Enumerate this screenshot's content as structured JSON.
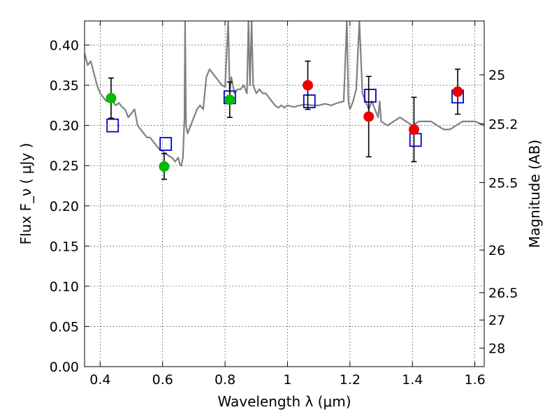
{
  "chart_data": {
    "type": "scatter",
    "title": "",
    "xlabel": "Wavelength  λ (μm)",
    "ylabel": "Flux  F_ν  ( μJy )",
    "ylabel_right": "Magnitude (AB)",
    "xlim": [
      0.35,
      1.63
    ],
    "ylim": [
      0.0,
      0.43
    ],
    "grid": true,
    "x_ticks": [
      0.4,
      0.6,
      0.8,
      1.0,
      1.2,
      1.4,
      1.6
    ],
    "x_tick_labels": [
      "0.4",
      "0.6",
      "0.8",
      "1",
      "1.2",
      "1.4",
      "1.6"
    ],
    "y_ticks": [
      0.0,
      0.05,
      0.1,
      0.15,
      0.2,
      0.25,
      0.3,
      0.35,
      0.4
    ],
    "y_tick_labels": [
      "0.00",
      "0.05",
      "0.10",
      "0.15",
      "0.20",
      "0.25",
      "0.30",
      "0.35",
      "0.40"
    ],
    "right_axis_ticks": [
      {
        "flux": 0.363,
        "label": "25"
      },
      {
        "flux": 0.302,
        "label": "25.2"
      },
      {
        "flux": 0.229,
        "label": "25.5"
      },
      {
        "flux": 0.145,
        "label": "26"
      },
      {
        "flux": 0.092,
        "label": "26.5"
      },
      {
        "flux": 0.058,
        "label": "27"
      },
      {
        "flux": 0.023,
        "label": "28"
      }
    ],
    "series": [
      {
        "kind": "model-spectrum",
        "color": "#808080",
        "x": [
          0.35,
          0.36,
          0.37,
          0.38,
          0.39,
          0.4,
          0.41,
          0.42,
          0.43,
          0.44,
          0.45,
          0.46,
          0.47,
          0.48,
          0.49,
          0.5,
          0.51,
          0.52,
          0.53,
          0.54,
          0.55,
          0.56,
          0.57,
          0.58,
          0.59,
          0.6,
          0.61,
          0.62,
          0.63,
          0.64,
          0.65,
          0.655,
          0.66,
          0.665,
          0.67,
          0.672,
          0.675,
          0.68,
          0.69,
          0.7,
          0.71,
          0.72,
          0.73,
          0.74,
          0.75,
          0.76,
          0.77,
          0.78,
          0.79,
          0.8,
          0.81,
          0.815,
          0.82,
          0.83,
          0.84,
          0.85,
          0.86,
          0.87,
          0.875,
          0.88,
          0.885,
          0.89,
          0.9,
          0.91,
          0.92,
          0.93,
          0.94,
          0.95,
          0.96,
          0.97,
          0.98,
          0.99,
          1.0,
          1.02,
          1.04,
          1.06,
          1.08,
          1.1,
          1.12,
          1.14,
          1.16,
          1.18,
          1.19,
          1.195,
          1.2,
          1.21,
          1.22,
          1.23,
          1.24,
          1.25,
          1.26,
          1.27,
          1.28,
          1.29,
          1.295,
          1.3,
          1.32,
          1.34,
          1.36,
          1.38,
          1.4,
          1.42,
          1.44,
          1.46,
          1.48,
          1.5,
          1.52,
          1.54,
          1.56,
          1.58,
          1.6,
          1.63
        ],
        "y": [
          0.39,
          0.375,
          0.38,
          0.365,
          0.35,
          0.34,
          0.335,
          0.33,
          0.334,
          0.33,
          0.325,
          0.328,
          0.323,
          0.32,
          0.31,
          0.315,
          0.32,
          0.3,
          0.295,
          0.29,
          0.285,
          0.285,
          0.28,
          0.275,
          0.27,
          0.268,
          0.265,
          0.262,
          0.26,
          0.255,
          0.26,
          0.252,
          0.25,
          0.26,
          0.31,
          0.43,
          0.3,
          0.29,
          0.3,
          0.31,
          0.32,
          0.325,
          0.32,
          0.36,
          0.37,
          0.365,
          0.36,
          0.355,
          0.35,
          0.348,
          0.43,
          0.34,
          0.36,
          0.34,
          0.345,
          0.345,
          0.35,
          0.34,
          0.43,
          0.35,
          0.43,
          0.35,
          0.34,
          0.345,
          0.34,
          0.34,
          0.335,
          0.33,
          0.325,
          0.322,
          0.325,
          0.322,
          0.325,
          0.323,
          0.325,
          0.326,
          0.325,
          0.325,
          0.327,
          0.325,
          0.328,
          0.33,
          0.43,
          0.33,
          0.32,
          0.33,
          0.345,
          0.43,
          0.34,
          0.33,
          0.32,
          0.33,
          0.32,
          0.31,
          0.33,
          0.305,
          0.3,
          0.305,
          0.31,
          0.305,
          0.3,
          0.305,
          0.305,
          0.305,
          0.3,
          0.295,
          0.295,
          0.3,
          0.305,
          0.305,
          0.305,
          0.3
        ]
      },
      {
        "kind": "blue-squares",
        "color": "#0000cc",
        "x": [
          0.44,
          0.61,
          0.815,
          1.07,
          1.265,
          1.41,
          1.545
        ],
        "y": [
          0.3,
          0.277,
          0.335,
          0.33,
          0.337,
          0.282,
          0.336
        ]
      },
      {
        "kind": "green-points",
        "color": "#00bb00",
        "x": [
          0.435,
          0.605,
          0.815
        ],
        "y": [
          0.334,
          0.249,
          0.332
        ],
        "err_low": [
          0.025,
          0.016,
          0.022
        ],
        "err_high": [
          0.025,
          0.016,
          0.022
        ]
      },
      {
        "kind": "red-points",
        "color": "#ee0000",
        "x": [
          1.065,
          1.26,
          1.405,
          1.545
        ],
        "y": [
          0.35,
          0.311,
          0.295,
          0.342
        ],
        "err_low": [
          0.03,
          0.05,
          0.04,
          0.028
        ],
        "err_high": [
          0.03,
          0.05,
          0.04,
          0.028
        ]
      }
    ]
  }
}
